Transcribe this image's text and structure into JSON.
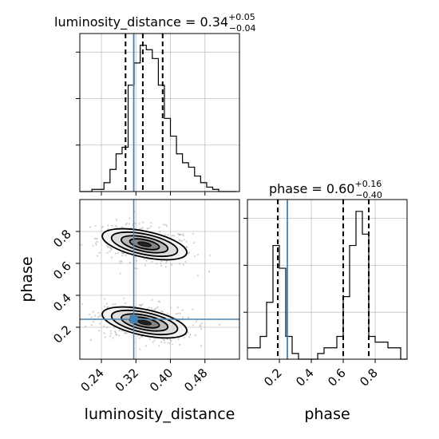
{
  "chart_data": {
    "type": "corner",
    "parameters": [
      {
        "name": "luminosity_distance",
        "axis_label": "luminosity_distance",
        "range": [
          0.19,
          0.56
        ],
        "ticks": [
          0.24,
          0.32,
          0.4,
          0.48
        ],
        "tick_labels": [
          "0.24",
          "0.32",
          "0.40",
          "0.48"
        ],
        "truth": 0.315,
        "title": {
          "prefix": "luminosity_distance = 0.34",
          "sup": "+0.05",
          "sub": "−0.04"
        },
        "quantiles": [
          0.296,
          0.336,
          0.382
        ],
        "histogram": {
          "bin_edges": [
            0.19,
            0.204,
            0.218,
            0.232,
            0.246,
            0.26,
            0.274,
            0.288,
            0.302,
            0.316,
            0.33,
            0.344,
            0.358,
            0.372,
            0.386,
            0.4,
            0.414,
            0.428,
            0.442,
            0.456,
            0.47,
            0.484,
            0.498,
            0.512,
            0.526,
            0.54,
            0.554
          ],
          "counts": [
            0,
            0,
            1,
            1,
            4,
            10,
            17,
            20,
            48,
            58,
            66,
            64,
            60,
            48,
            33,
            25,
            17,
            13,
            11,
            7,
            4,
            2,
            1,
            0,
            0,
            0
          ]
        }
      },
      {
        "name": "phase",
        "axis_label": "phase",
        "range": [
          0.0,
          1.0
        ],
        "ticks": [
          0.2,
          0.4,
          0.6,
          0.8
        ],
        "tick_labels": [
          "0.2",
          "0.4",
          "0.6",
          "0.8"
        ],
        "truth": 0.25,
        "title": {
          "prefix": "phase = 0.60",
          "sup": "+0.16",
          "sub": "−0.40"
        },
        "quantiles": [
          0.19,
          0.6,
          0.76
        ],
        "histogram": {
          "bin_edges": [
            0.0,
            0.04,
            0.08,
            0.12,
            0.16,
            0.2,
            0.24,
            0.28,
            0.32,
            0.36,
            0.4,
            0.44,
            0.48,
            0.52,
            0.56,
            0.6,
            0.64,
            0.68,
            0.72,
            0.76,
            0.8,
            0.84,
            0.88,
            0.92,
            0.96,
            1.0
          ],
          "counts": [
            2,
            2,
            4,
            10,
            20,
            16,
            4,
            1,
            0,
            0,
            0,
            1,
            2,
            2,
            4,
            11,
            20,
            26,
            22,
            4,
            3,
            3,
            2,
            2,
            0
          ]
        }
      }
    ],
    "joint_2d": {
      "x": "luminosity_distance",
      "y": "phase",
      "modes": [
        {
          "center": [
            0.34,
            0.72
          ],
          "spread": [
            0.05,
            0.06
          ]
        },
        {
          "center": [
            0.34,
            0.23
          ],
          "spread": [
            0.05,
            0.06
          ]
        }
      ],
      "truth_point": [
        0.315,
        0.25
      ]
    },
    "colors": {
      "truth": "#4682b4",
      "line": "#000000",
      "grid": "#c0c0c0",
      "scatter": "#aaaaaa"
    },
    "grid": true
  }
}
